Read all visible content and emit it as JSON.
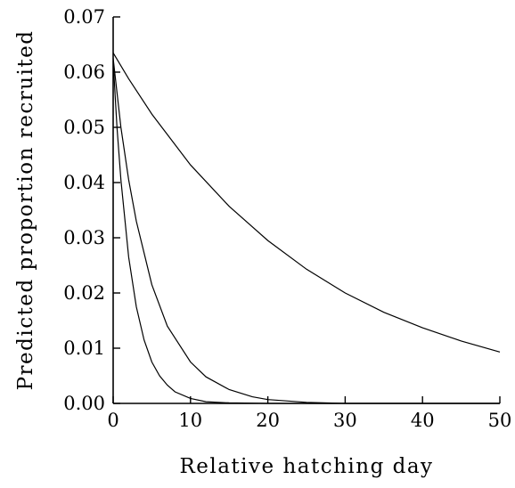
{
  "chart_data": {
    "type": "line",
    "title": "",
    "xlabel": "Relative hatching day",
    "ylabel": "Predicted proportion recruited",
    "xlim": [
      0,
      50
    ],
    "ylim": [
      0,
      0.07
    ],
    "xticks": [
      "0",
      "10",
      "20",
      "30",
      "40",
      "50"
    ],
    "yticks": [
      "0.00",
      "0.01",
      "0.02",
      "0.03",
      "0.04",
      "0.05",
      "0.06",
      "0.07"
    ],
    "grid": false,
    "legend": "none",
    "series": [
      {
        "x": [
          0,
          2,
          5,
          10,
          15,
          20,
          25,
          30,
          35,
          40,
          45,
          50
        ],
        "y": [
          0.0635,
          0.0588,
          0.0524,
          0.0432,
          0.0357,
          0.0295,
          0.0243,
          0.02,
          0.0165,
          0.0137,
          0.0113,
          0.0093
        ]
      },
      {
        "x": [
          0,
          1,
          2,
          3,
          5,
          7,
          10,
          12,
          15,
          18,
          20,
          25,
          30,
          35,
          40,
          45,
          50
        ],
        "y": [
          0.0625,
          0.05,
          0.0405,
          0.033,
          0.0215,
          0.014,
          0.0075,
          0.0048,
          0.0025,
          0.0012,
          0.0007,
          0.0002,
          0.0,
          0.0,
          0.0,
          0.0,
          0.0
        ]
      },
      {
        "x": [
          0,
          0.5,
          1,
          2,
          3,
          4,
          5,
          6,
          7,
          8,
          10,
          12,
          15,
          20,
          30,
          40,
          50
        ],
        "y": [
          0.062,
          0.05,
          0.0405,
          0.0265,
          0.0175,
          0.0115,
          0.0075,
          0.005,
          0.0033,
          0.0021,
          0.0009,
          0.0003,
          0.0001,
          0.0,
          0.0,
          0.0,
          0.0
        ]
      }
    ]
  }
}
